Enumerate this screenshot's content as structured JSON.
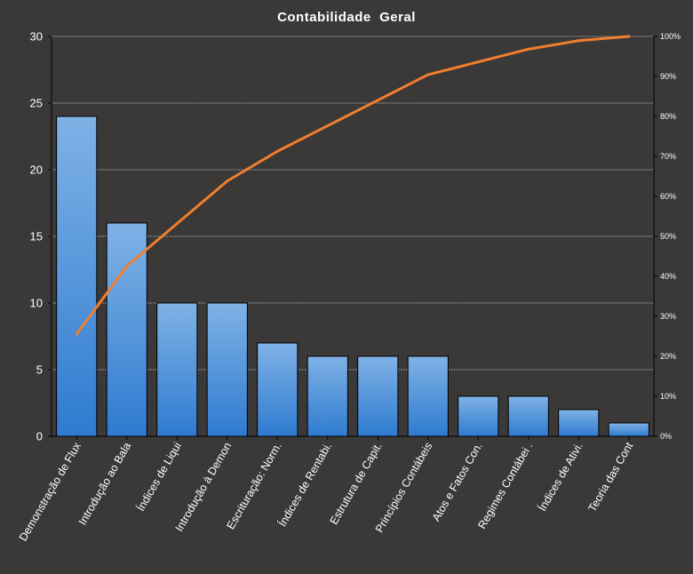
{
  "chart_data": {
    "type": "bar",
    "title": "Contabilidade  Geral",
    "xlabel": "",
    "ylabel": "",
    "categories": [
      "Demonstração de Flux",
      "Introdução ao Bala",
      "Índices de Liqui",
      "Introdução à Demon",
      "Escrituração: Norm.",
      "Índices de Rentabi.",
      "Estrutura de Capit.",
      "Princípios Contábeis",
      "Atos e Fatos Con.",
      "Regimes Contábei .",
      "Índices de Ativi.",
      "Teoria das Cont"
    ],
    "series": [
      {
        "type": "bar",
        "axis": "left",
        "values": [
          24,
          16,
          10,
          10,
          7,
          6,
          6,
          6,
          3,
          3,
          2,
          1
        ]
      },
      {
        "type": "line",
        "axis": "right",
        "values": [
          0.2553,
          0.4255,
          0.5319,
          0.6383,
          0.7128,
          0.7766,
          0.8404,
          0.9043,
          0.9362,
          0.9681,
          0.9894,
          1.0
        ]
      }
    ],
    "ylim": [
      0,
      30
    ],
    "y_ticks": [
      "0",
      "5",
      "10",
      "15",
      "20",
      "25",
      "30"
    ],
    "y2lim": [
      0,
      1
    ],
    "y2_ticks": [
      "0%",
      "10%",
      "20%",
      "30%",
      "40%",
      "50%",
      "60%",
      "70%",
      "80%",
      "90%",
      "100%"
    ],
    "grid": true,
    "legend": "none",
    "colors": {
      "background": "#3b3838",
      "bar_top": "#7fb2e6",
      "bar_bottom": "#2f7bd0",
      "bar_edge": "#000000",
      "line": "#f07f2e",
      "grid": "#dcdcdc",
      "text": "#ffffff"
    }
  }
}
